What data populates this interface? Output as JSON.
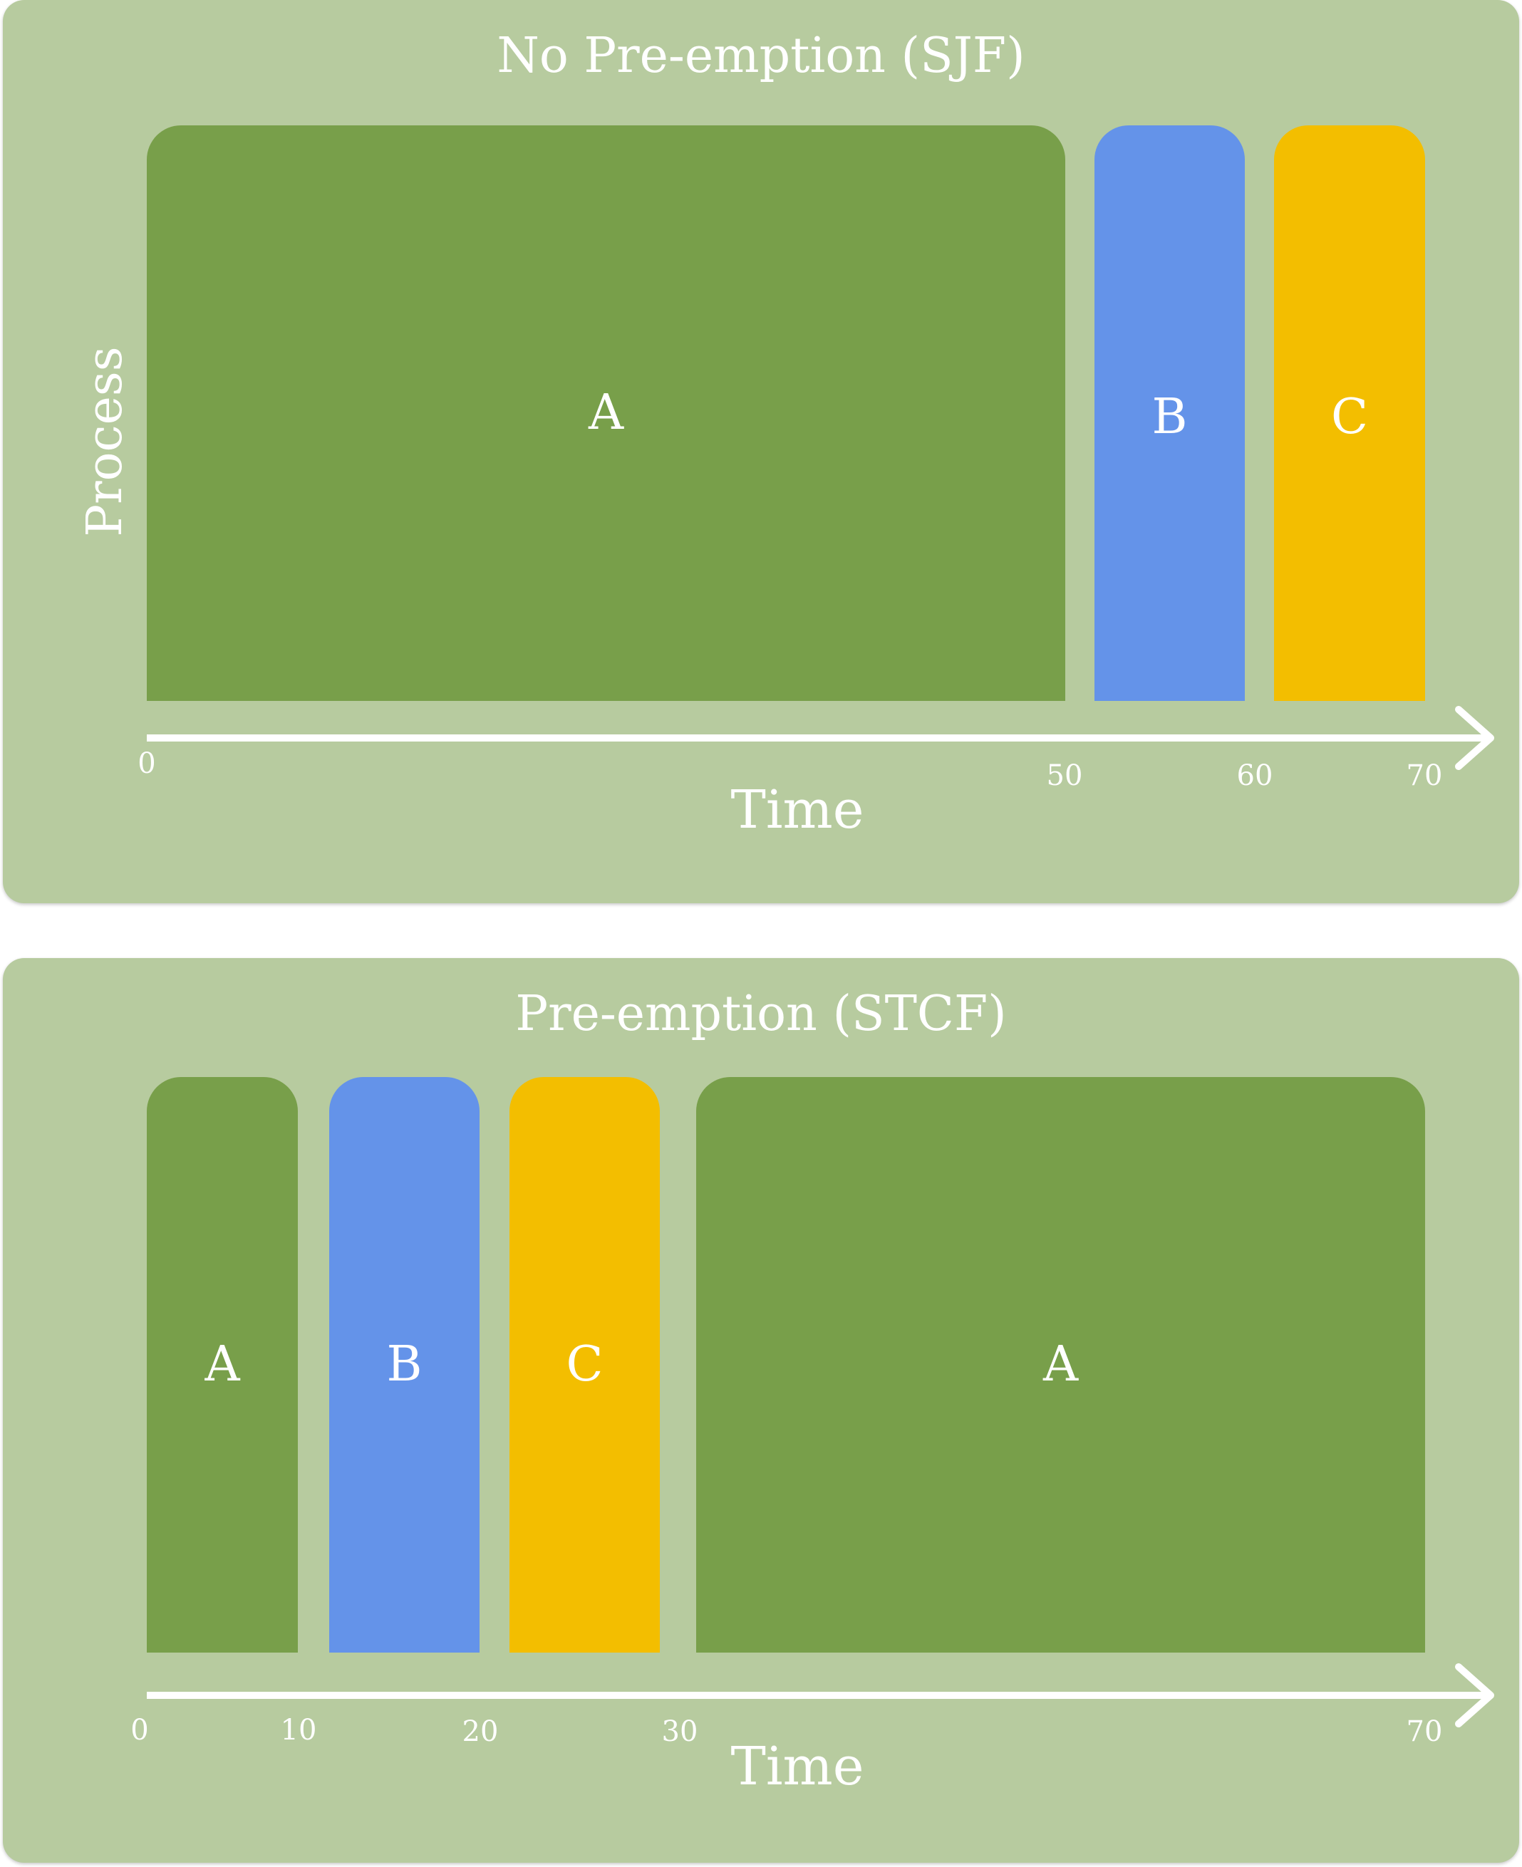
{
  "colors": {
    "panel": "#b7cb9f",
    "A": "#789f4a",
    "B": "#6493e9",
    "C": "#f3be00",
    "text": "#ffffff"
  },
  "top": {
    "title": "No Pre-emption (SJF)",
    "ylabel": "Process",
    "xlabel": "Time",
    "ticks": [
      "0",
      "50",
      "60",
      "70"
    ],
    "bars": [
      {
        "label": "A",
        "start": 0,
        "end": 50
      },
      {
        "label": "B",
        "start": 50,
        "end": 60
      },
      {
        "label": "C",
        "start": 60,
        "end": 70
      }
    ]
  },
  "bottom": {
    "title": "Pre-emption (STCF)",
    "xlabel": "Time",
    "ticks": [
      "0",
      "10",
      "20",
      "30",
      "70"
    ],
    "bars": [
      {
        "label": "A",
        "start": 0,
        "end": 10
      },
      {
        "label": "B",
        "start": 10,
        "end": 20
      },
      {
        "label": "C",
        "start": 20,
        "end": 30
      },
      {
        "label": "A",
        "start": 30,
        "end": 70
      }
    ]
  }
}
